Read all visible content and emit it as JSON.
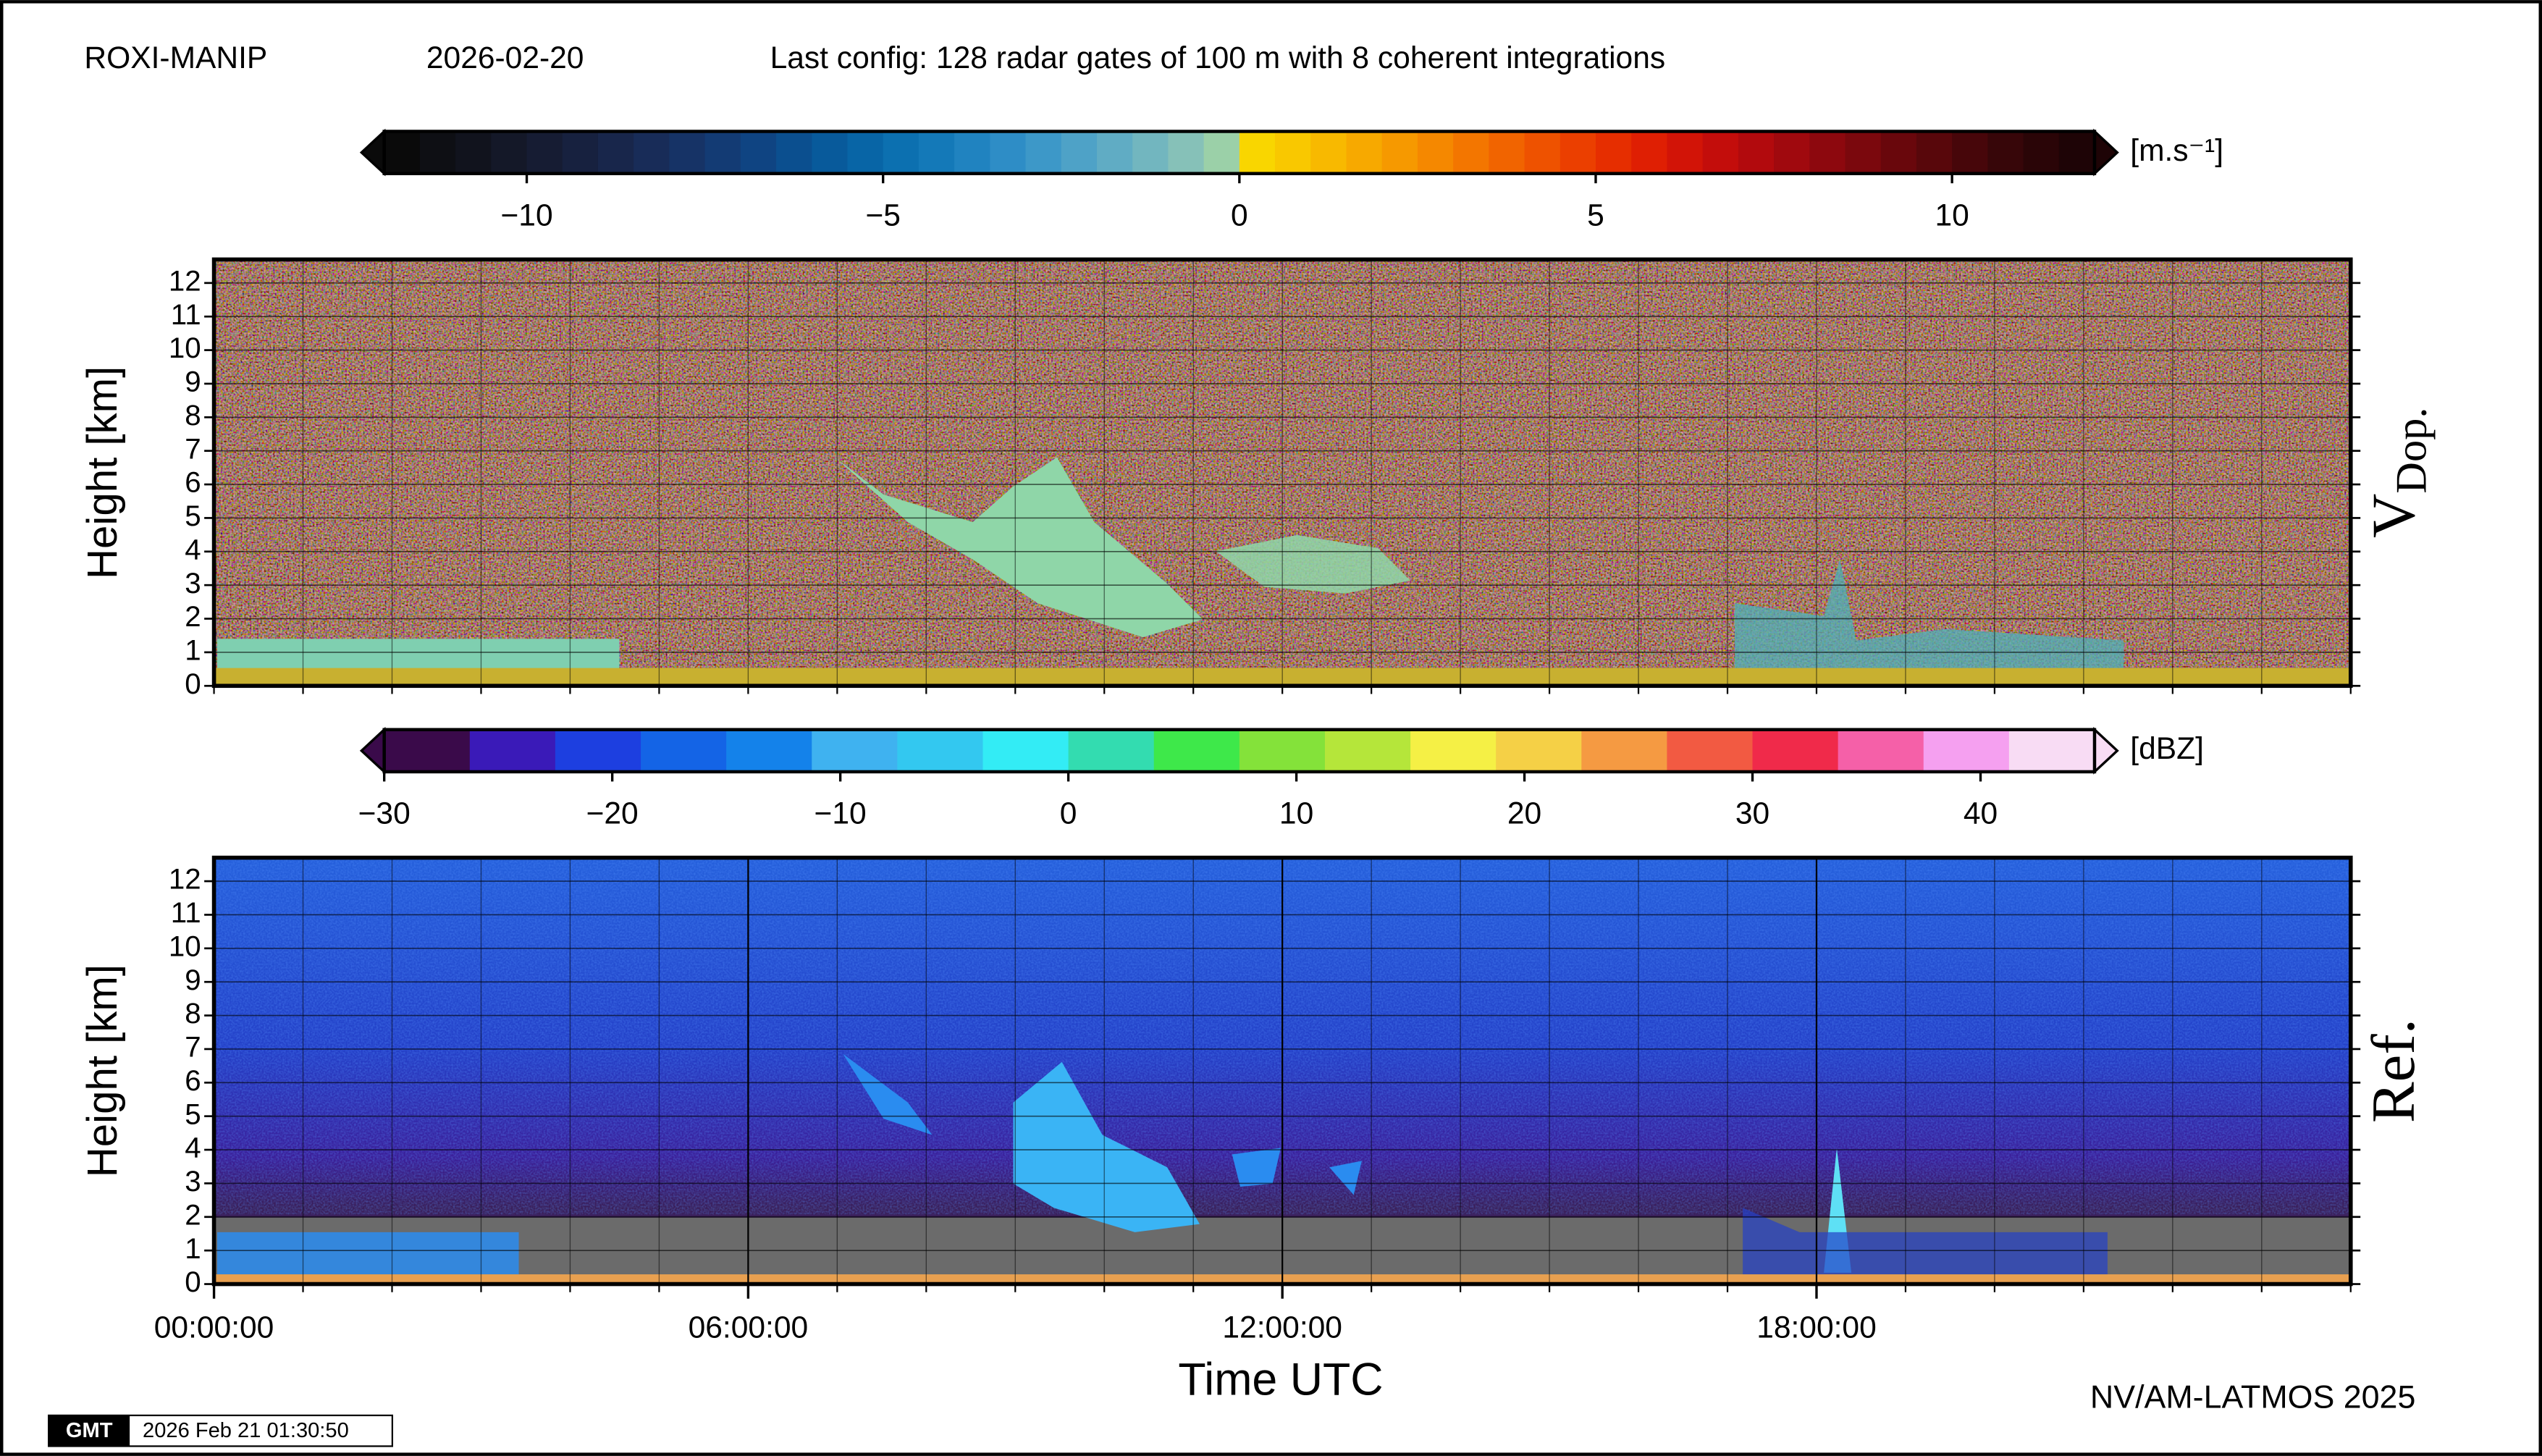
{
  "header": {
    "station": "ROXI-MANIP",
    "date": "2026-02-20",
    "config": "Last config: 128 radar gates of 100 m with 8 coherent integrations"
  },
  "chart_data": [
    {
      "type": "heatmap",
      "ylabel": "Height [km]",
      "side_label": "V",
      "side_label_sub": "Dop.",
      "xlim": [
        0,
        24
      ],
      "ylim": [
        0,
        12.7
      ],
      "yticks": [
        0,
        1,
        2,
        3,
        4,
        5,
        6,
        7,
        8,
        9,
        10,
        11,
        12
      ],
      "grid": true,
      "colorbar": {
        "unit": "[m.s⁻¹]",
        "lim": [
          -12,
          12
        ],
        "ticks": [
          {
            "value": -10,
            "label": "−10"
          },
          {
            "value": -5,
            "label": "−5"
          },
          0,
          5,
          10
        ],
        "colors": [
          "#0a0a0a",
          "#0e0f14",
          "#11131d",
          "#141828",
          "#161c33",
          "#17213f",
          "#18264b",
          "#182c58",
          "#163366",
          "#133b74",
          "#0f4482",
          "#0b4f8f",
          "#085a9b",
          "#0865a6",
          "#0c70b0",
          "#1479b8",
          "#2083c0",
          "#2e8dc6",
          "#3d98c8",
          "#4ea2c7",
          "#60acc4",
          "#72b6bf",
          "#86c1b8",
          "#9bd0a8",
          "#f9d600",
          "#f9c800",
          "#f8b900",
          "#f7a900",
          "#f69900",
          "#f58800",
          "#f37600",
          "#f16400",
          "#ee5200",
          "#eb3f00",
          "#e62e00",
          "#df1f03",
          "#d21407",
          "#c30d0b",
          "#b20a0d",
          "#a0090e",
          "#8d080e",
          "#7b080d",
          "#69070c",
          "#58070b",
          "#47060a",
          "#370609",
          "#2a0507",
          "#1e0406"
        ]
      }
    },
    {
      "type": "heatmap",
      "ylabel": "Height [km]",
      "side_label": "Ref.",
      "xlabel": "Time UTC",
      "xlim": [
        0,
        24
      ],
      "ylim": [
        0,
        12.7
      ],
      "yticks": [
        0,
        1,
        2,
        3,
        4,
        5,
        6,
        7,
        8,
        9,
        10,
        11,
        12
      ],
      "grid": true,
      "xticks": [
        {
          "value": 0,
          "label": "00:00:00"
        },
        {
          "value": 6,
          "label": "06:00:00"
        },
        {
          "value": 12,
          "label": "12:00:00"
        },
        {
          "value": 18,
          "label": "18:00:00"
        }
      ],
      "colorbar": {
        "unit": "[dBZ]",
        "lim": [
          -30,
          45
        ],
        "ticks": [
          {
            "value": -30,
            "label": "−30"
          },
          {
            "value": -20,
            "label": "−20"
          },
          {
            "value": -10,
            "label": "−10"
          },
          0,
          10,
          20,
          30,
          40
        ],
        "colors": [
          "#3a0a4a",
          "#3a1ab8",
          "#1d3fe0",
          "#1464e6",
          "#1482ea",
          "#3fb2f0",
          "#33c8f0",
          "#33ecf5",
          "#33dcb0",
          "#3ee84a",
          "#84e23a",
          "#b5e63a",
          "#f5f045",
          "#f5d046",
          "#f59a42",
          "#f25a42",
          "#f02a4a",
          "#f560a8",
          "#f5a0f0",
          "#f8dcf4"
        ]
      }
    }
  ],
  "footer": {
    "credit": "NV/AM-LATMOS 2025",
    "logo": "GMT",
    "timestamp": "2026 Feb 21 01:30:50"
  }
}
